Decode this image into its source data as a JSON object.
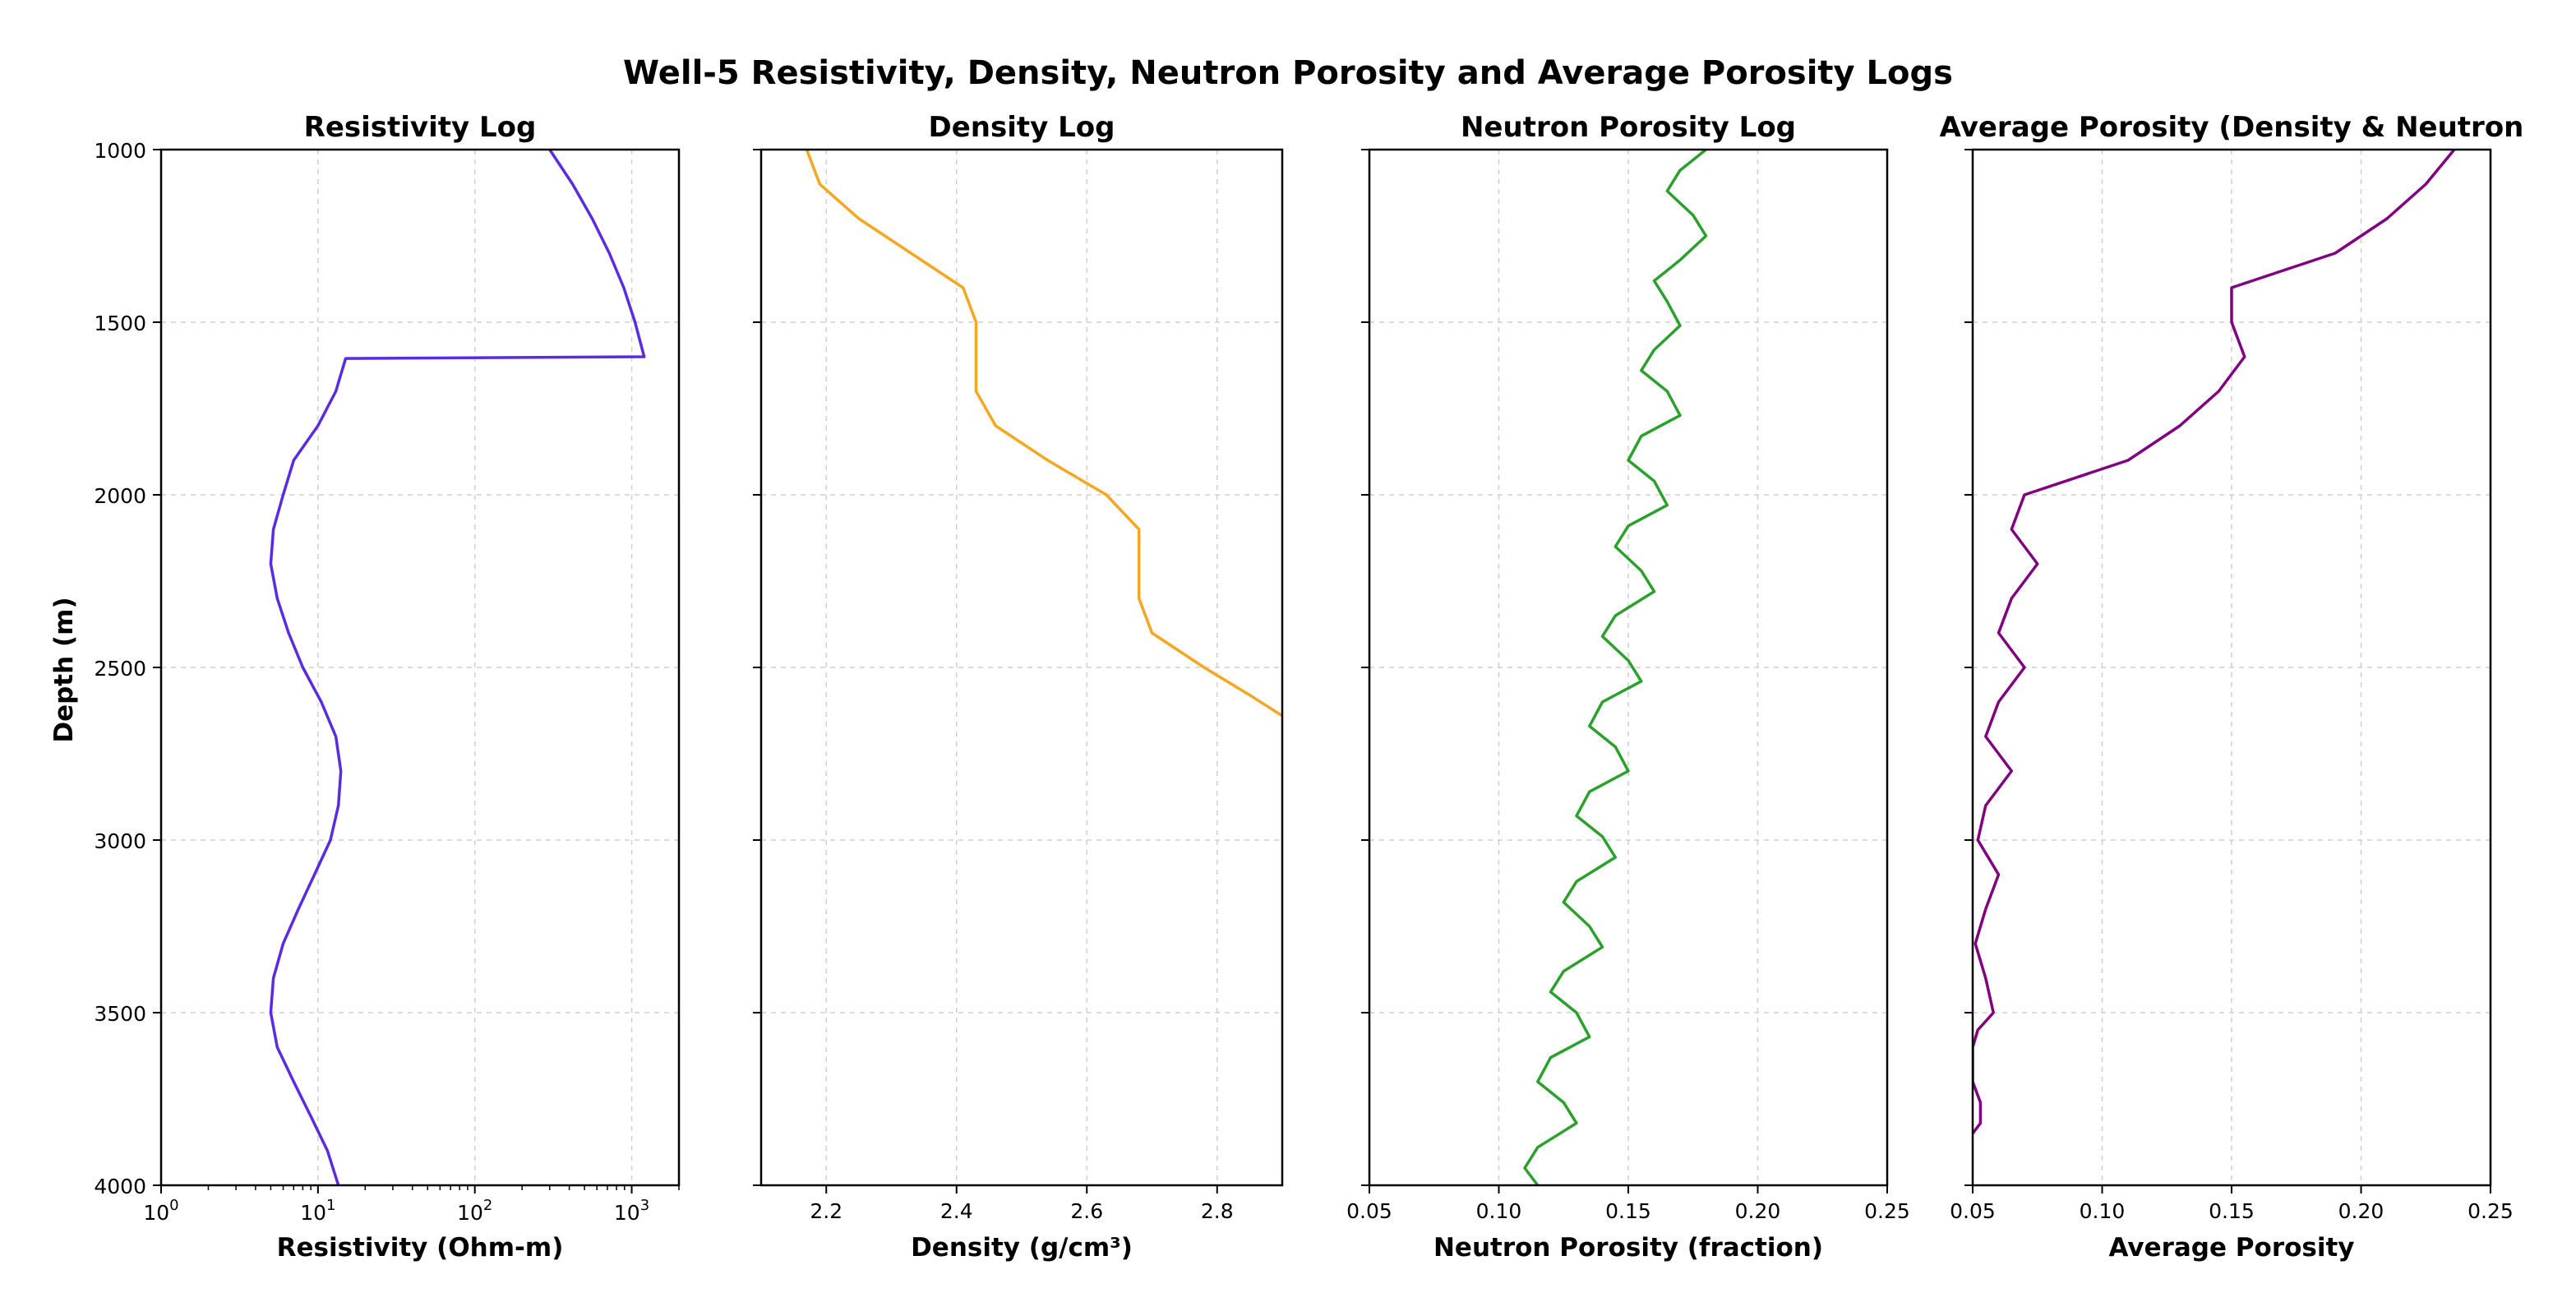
{
  "figure": {
    "suptitle": "Well-5 Resistivity, Density, Neutron Porosity and Average Porosity Logs",
    "ylabel": "Depth (m)"
  },
  "chart_data": [
    {
      "type": "line",
      "title": "Resistivity Log",
      "xlabel": "Resistivity (Ohm-m)",
      "ylabel": "Depth (m)",
      "xscale": "log",
      "xlim": [
        1,
        2000
      ],
      "ylim": [
        4000,
        1000
      ],
      "grid": true,
      "color": "#5b2be0",
      "xticks": [
        {
          "v": 1,
          "base": "10",
          "exp": "0"
        },
        {
          "v": 10,
          "base": "10",
          "exp": "1"
        },
        {
          "v": 100,
          "base": "10",
          "exp": "2"
        },
        {
          "v": 1000,
          "base": "10",
          "exp": "3"
        }
      ],
      "yticks": [
        "1000",
        "1500",
        "2000",
        "2500",
        "3000",
        "3500",
        "4000"
      ],
      "points": [
        [
          300,
          1000
        ],
        [
          420,
          1100
        ],
        [
          560,
          1200
        ],
        [
          720,
          1300
        ],
        [
          890,
          1400
        ],
        [
          1050,
          1500
        ],
        [
          1200,
          1600
        ],
        [
          15,
          1605
        ],
        [
          13,
          1700
        ],
        [
          10,
          1800
        ],
        [
          7,
          1900
        ],
        [
          6,
          2000
        ],
        [
          5.2,
          2100
        ],
        [
          5,
          2200
        ],
        [
          5.5,
          2300
        ],
        [
          6.5,
          2400
        ],
        [
          8,
          2500
        ],
        [
          10.5,
          2600
        ],
        [
          13,
          2700
        ],
        [
          14,
          2800
        ],
        [
          13.5,
          2900
        ],
        [
          12,
          3000
        ],
        [
          9.5,
          3100
        ],
        [
          7.5,
          3200
        ],
        [
          6,
          3300
        ],
        [
          5.2,
          3400
        ],
        [
          5,
          3500
        ],
        [
          5.5,
          3600
        ],
        [
          7,
          3700
        ],
        [
          9,
          3800
        ],
        [
          11.5,
          3900
        ],
        [
          13.5,
          4000
        ]
      ]
    },
    {
      "type": "line",
      "title": "Density Log",
      "xlabel": "Density (g/cm³)",
      "xscale": "linear",
      "xlim": [
        2.1,
        2.9
      ],
      "ylim": [
        4000,
        1000
      ],
      "grid": true,
      "color": "#f5a623",
      "xticks": [
        "2.2",
        "2.4",
        "2.6",
        "2.8"
      ],
      "points": [
        [
          2.17,
          1000
        ],
        [
          2.19,
          1100
        ],
        [
          2.25,
          1200
        ],
        [
          2.33,
          1300
        ],
        [
          2.41,
          1400
        ],
        [
          2.43,
          1500
        ],
        [
          2.43,
          1600
        ],
        [
          2.43,
          1700
        ],
        [
          2.46,
          1800
        ],
        [
          2.54,
          1900
        ],
        [
          2.63,
          2000
        ],
        [
          2.68,
          2100
        ],
        [
          2.68,
          2200
        ],
        [
          2.68,
          2300
        ],
        [
          2.7,
          2400
        ],
        [
          2.78,
          2500
        ],
        [
          2.85,
          2580
        ],
        [
          2.9,
          2640
        ]
      ]
    },
    {
      "type": "line",
      "title": "Neutron Porosity Log",
      "xlabel": "Neutron Porosity (fraction)",
      "xscale": "linear",
      "xlim": [
        0.05,
        0.25
      ],
      "ylim": [
        4000,
        1000
      ],
      "grid": true,
      "color": "#2ca02c",
      "xticks": [
        "0.05",
        "0.10",
        "0.15",
        "0.20",
        "0.25"
      ],
      "points": [
        [
          0.18,
          1000
        ],
        [
          0.17,
          1060
        ],
        [
          0.165,
          1120
        ],
        [
          0.175,
          1190
        ],
        [
          0.18,
          1250
        ],
        [
          0.17,
          1320
        ],
        [
          0.16,
          1380
        ],
        [
          0.165,
          1440
        ],
        [
          0.17,
          1510
        ],
        [
          0.16,
          1580
        ],
        [
          0.155,
          1640
        ],
        [
          0.165,
          1700
        ],
        [
          0.17,
          1770
        ],
        [
          0.155,
          1830
        ],
        [
          0.15,
          1900
        ],
        [
          0.16,
          1960
        ],
        [
          0.165,
          2030
        ],
        [
          0.15,
          2090
        ],
        [
          0.145,
          2150
        ],
        [
          0.155,
          2220
        ],
        [
          0.16,
          2280
        ],
        [
          0.145,
          2350
        ],
        [
          0.14,
          2410
        ],
        [
          0.15,
          2480
        ],
        [
          0.155,
          2540
        ],
        [
          0.14,
          2600
        ],
        [
          0.135,
          2670
        ],
        [
          0.145,
          2730
        ],
        [
          0.15,
          2800
        ],
        [
          0.135,
          2860
        ],
        [
          0.13,
          2930
        ],
        [
          0.14,
          2990
        ],
        [
          0.145,
          3050
        ],
        [
          0.13,
          3120
        ],
        [
          0.125,
          3180
        ],
        [
          0.135,
          3250
        ],
        [
          0.14,
          3310
        ],
        [
          0.125,
          3380
        ],
        [
          0.12,
          3440
        ],
        [
          0.13,
          3500
        ],
        [
          0.135,
          3570
        ],
        [
          0.12,
          3630
        ],
        [
          0.115,
          3700
        ],
        [
          0.125,
          3760
        ],
        [
          0.13,
          3820
        ],
        [
          0.115,
          3890
        ],
        [
          0.11,
          3950
        ],
        [
          0.115,
          4000
        ]
      ]
    },
    {
      "type": "line",
      "title": "Average Porosity (Density & Neutron",
      "xlabel": "Average Porosity",
      "xscale": "linear",
      "xlim": [
        0.05,
        0.25
      ],
      "ylim": [
        4000,
        1000
      ],
      "grid": true,
      "color": "#800080",
      "xticks": [
        "0.05",
        "0.10",
        "0.15",
        "0.20",
        "0.25"
      ],
      "points": [
        [
          0.236,
          1000
        ],
        [
          0.225,
          1100
        ],
        [
          0.21,
          1200
        ],
        [
          0.19,
          1300
        ],
        [
          0.15,
          1400
        ],
        [
          0.15,
          1500
        ],
        [
          0.155,
          1600
        ],
        [
          0.145,
          1700
        ],
        [
          0.13,
          1800
        ],
        [
          0.11,
          1900
        ],
        [
          0.07,
          2000
        ],
        [
          0.065,
          2100
        ],
        [
          0.075,
          2200
        ],
        [
          0.065,
          2300
        ],
        [
          0.06,
          2400
        ],
        [
          0.07,
          2500
        ],
        [
          0.06,
          2600
        ],
        [
          0.055,
          2700
        ],
        [
          0.065,
          2800
        ],
        [
          0.055,
          2900
        ],
        [
          0.052,
          3000
        ],
        [
          0.06,
          3100
        ],
        [
          0.055,
          3200
        ],
        [
          0.051,
          3300
        ],
        [
          0.055,
          3400
        ],
        [
          0.058,
          3500
        ],
        [
          0.052,
          3550
        ],
        [
          0.05,
          3600
        ],
        [
          0.05,
          3700
        ],
        [
          0.053,
          3760
        ],
        [
          0.053,
          3820
        ],
        [
          0.05,
          3850
        ]
      ]
    }
  ]
}
